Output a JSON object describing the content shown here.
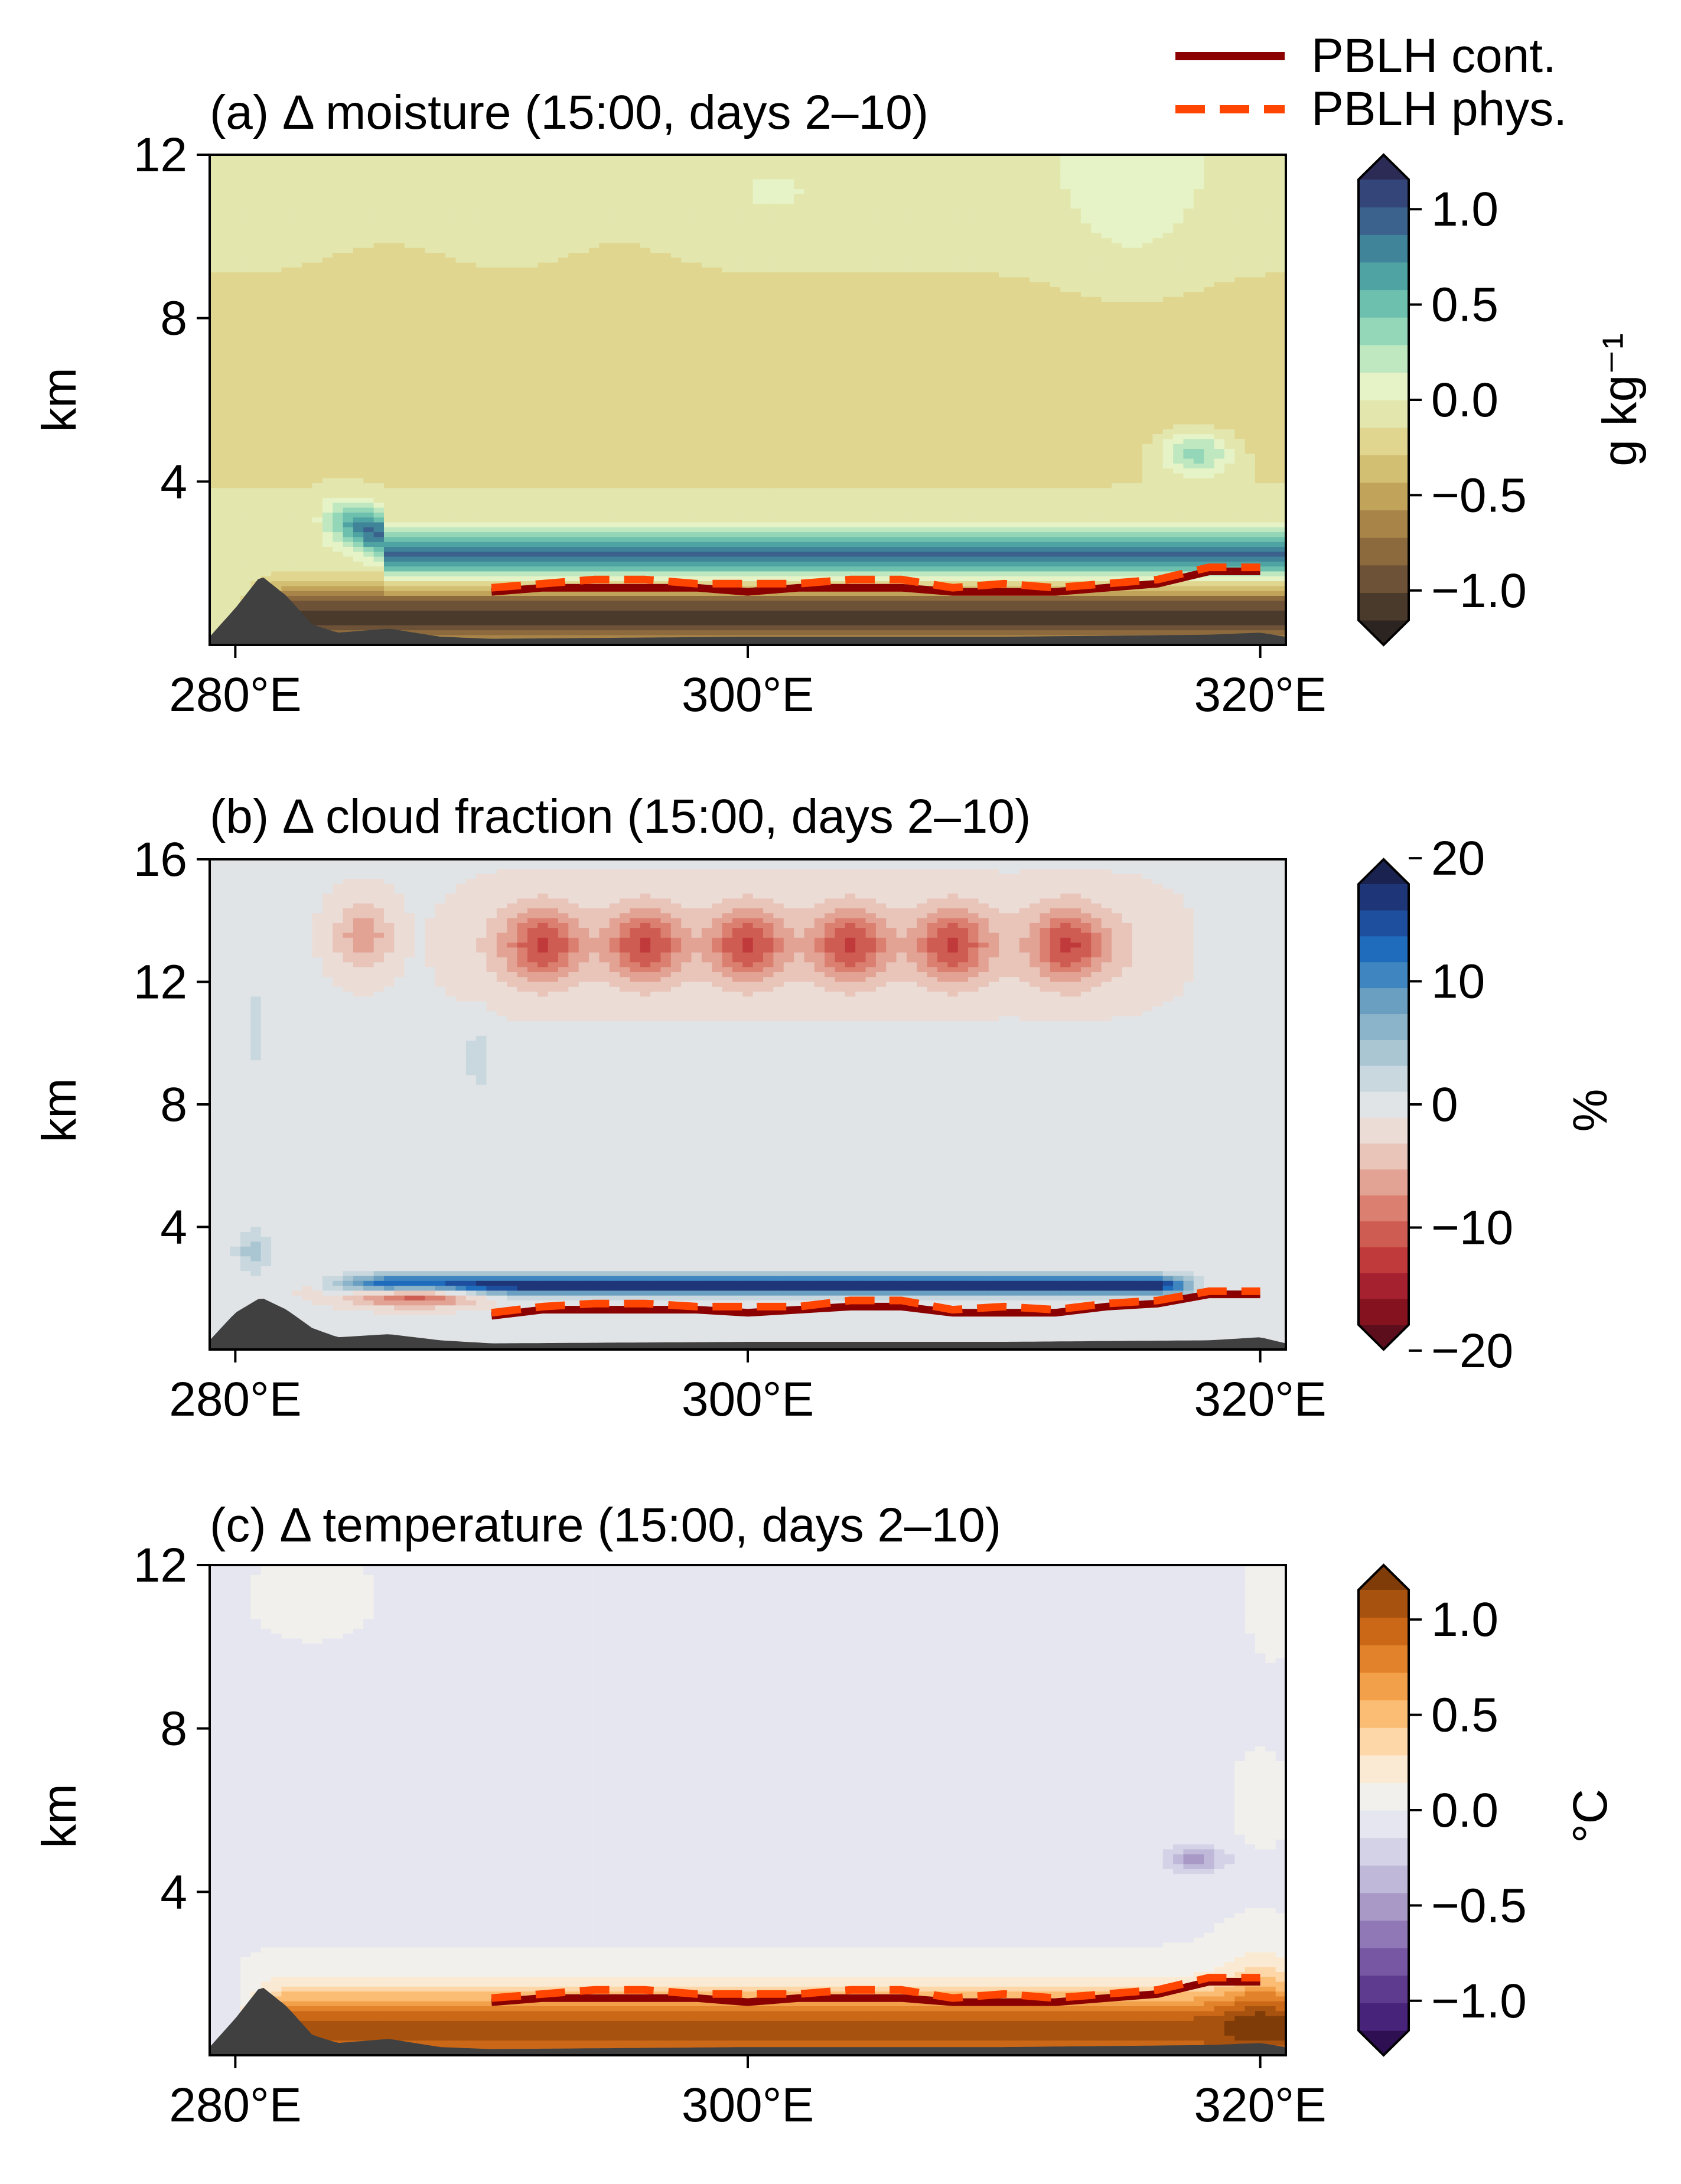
{
  "legend": {
    "placement": "top-right",
    "entries": [
      {
        "label": "PBLH cont.",
        "style": "solid",
        "color": "#8b0000"
      },
      {
        "label": "PBLH phys.",
        "style": "dashed",
        "color": "#ff4500"
      }
    ]
  },
  "chart_data": [
    {
      "type": "heatmap",
      "title": "(a) Δ moisture (15:00, days 2–10)",
      "xlabel": "",
      "ylabel": "km",
      "xlim": [
        279,
        321
      ],
      "ylim": [
        0,
        12
      ],
      "x_ticks": [
        280,
        300,
        320
      ],
      "x_tick_labels": [
        "280°E",
        "300°E",
        "320°E"
      ],
      "y_ticks": [
        4,
        8,
        12
      ],
      "y_tick_labels": [
        "4",
        "8",
        "12"
      ],
      "colorbar": {
        "label": "g kg⁻¹",
        "range": [
          -1.3,
          1.3
        ],
        "ticks": [
          -1.0,
          -0.5,
          0.0,
          0.5,
          1.0
        ],
        "tick_labels": [
          "−1.0",
          "−0.5",
          "0.0",
          "0.5",
          "1.0"
        ],
        "colors": [
          "#2b2420",
          "#4a3a2c",
          "#6e5237",
          "#8c6a3e",
          "#a88448",
          "#c2a35a",
          "#d3bf72",
          "#e0d68f",
          "#e3e7ae",
          "#e6f3c6",
          "#bfe8c0",
          "#94d6b8",
          "#6dc0ae",
          "#4fa3a3",
          "#3f8499",
          "#3a628c",
          "#34457a",
          "#2b2b55"
        ]
      },
      "pblh": {
        "x": [
          290,
          292,
          294,
          296,
          298,
          300,
          302,
          304,
          306,
          308,
          310,
          312,
          314,
          316,
          318,
          320
        ],
        "cont": [
          1.3,
          1.4,
          1.4,
          1.4,
          1.4,
          1.3,
          1.4,
          1.4,
          1.4,
          1.3,
          1.3,
          1.3,
          1.4,
          1.5,
          1.8,
          1.8
        ],
        "phys": [
          1.4,
          1.5,
          1.6,
          1.6,
          1.5,
          1.5,
          1.5,
          1.6,
          1.6,
          1.4,
          1.5,
          1.4,
          1.5,
          1.6,
          1.9,
          1.9
        ]
      },
      "terrain": {
        "x": [
          279,
          280,
          281,
          282,
          283,
          284,
          286,
          288,
          290,
          300,
          310,
          318,
          320,
          321
        ],
        "h": [
          0.2,
          0.9,
          1.7,
          1.2,
          0.5,
          0.3,
          0.4,
          0.2,
          0.15,
          0.2,
          0.2,
          0.25,
          0.3,
          0.2
        ]
      }
    },
    {
      "type": "heatmap",
      "title": "(b) Δ cloud fraction (15:00, days 2–10)",
      "xlabel": "",
      "ylabel": "km",
      "xlim": [
        279,
        321
      ],
      "ylim": [
        0,
        16
      ],
      "x_ticks": [
        280,
        300,
        320
      ],
      "x_tick_labels": [
        "280°E",
        "300°E",
        "320°E"
      ],
      "y_ticks": [
        4,
        8,
        12,
        16
      ],
      "y_tick_labels": [
        "4",
        "8",
        "12",
        "16"
      ],
      "colorbar": {
        "label": "%",
        "range": [
          -20,
          20
        ],
        "ticks": [
          -20,
          -10,
          0,
          10,
          20
        ],
        "tick_labels": [
          "−20",
          "−10",
          "0",
          "10",
          "20"
        ],
        "colors": [
          "#5c0e1c",
          "#85121f",
          "#a52130",
          "#c0393b",
          "#cf5c52",
          "#db7f70",
          "#e3a394",
          "#e8c4b9",
          "#ebdcd6",
          "#e1e4e7",
          "#c9d7de",
          "#aac6d3",
          "#8bb3c9",
          "#6a9fc2",
          "#3f86c0",
          "#1f6cbd",
          "#1e4f9e",
          "#1e3577",
          "#1a2250"
        ]
      },
      "pblh": {
        "x": [
          290,
          292,
          294,
          296,
          298,
          300,
          302,
          304,
          306,
          308,
          310,
          312,
          314,
          316,
          318,
          320
        ],
        "cont": [
          1.1,
          1.3,
          1.3,
          1.3,
          1.3,
          1.2,
          1.3,
          1.4,
          1.4,
          1.2,
          1.2,
          1.2,
          1.4,
          1.5,
          1.8,
          1.8
        ],
        "phys": [
          1.2,
          1.4,
          1.5,
          1.5,
          1.4,
          1.4,
          1.4,
          1.6,
          1.6,
          1.3,
          1.4,
          1.3,
          1.5,
          1.6,
          1.9,
          1.9
        ]
      },
      "terrain": {
        "x": [
          279,
          280,
          281,
          282,
          283,
          284,
          286,
          288,
          290,
          300,
          310,
          318,
          320,
          321
        ],
        "h": [
          0.3,
          1.2,
          1.7,
          1.3,
          0.7,
          0.4,
          0.5,
          0.3,
          0.2,
          0.25,
          0.25,
          0.3,
          0.4,
          0.2
        ]
      }
    },
    {
      "type": "heatmap",
      "title": "(c) Δ temperature (15:00, days 2–10)",
      "xlabel": "",
      "ylabel": "km",
      "xlim": [
        279,
        321
      ],
      "ylim": [
        0,
        12
      ],
      "x_ticks": [
        280,
        300,
        320
      ],
      "x_tick_labels": [
        "280°E",
        "300°E",
        "320°E"
      ],
      "y_ticks": [
        4,
        8,
        12
      ],
      "y_tick_labels": [
        "4",
        "8",
        "12"
      ],
      "colorbar": {
        "label": "°C",
        "range": [
          -1.3,
          1.3
        ],
        "ticks": [
          -1.0,
          -0.5,
          0.0,
          0.5,
          1.0
        ],
        "tick_labels": [
          "−1.0",
          "−0.5",
          "0.0",
          "0.5",
          "1.0"
        ],
        "colors": [
          "#2d0f52",
          "#47237a",
          "#5e3b8f",
          "#7757a3",
          "#8f78b5",
          "#a899c7",
          "#bfb8d8",
          "#d3d2e6",
          "#e5e6ef",
          "#f2f0ec",
          "#fbead3",
          "#fdd7a8",
          "#fbbd73",
          "#f3a04a",
          "#e2822a",
          "#ca6818",
          "#a8520f",
          "#7f3c08"
        ]
      },
      "pblh": {
        "x": [
          290,
          292,
          294,
          296,
          298,
          300,
          302,
          304,
          306,
          308,
          310,
          312,
          314,
          316,
          318,
          320
        ],
        "cont": [
          1.3,
          1.4,
          1.4,
          1.4,
          1.4,
          1.3,
          1.4,
          1.4,
          1.4,
          1.3,
          1.3,
          1.3,
          1.4,
          1.5,
          1.8,
          1.8
        ],
        "phys": [
          1.4,
          1.5,
          1.6,
          1.6,
          1.5,
          1.5,
          1.5,
          1.6,
          1.6,
          1.4,
          1.5,
          1.4,
          1.5,
          1.6,
          1.9,
          1.9
        ]
      },
      "terrain": {
        "x": [
          279,
          280,
          281,
          282,
          283,
          284,
          286,
          288,
          290,
          300,
          310,
          318,
          320,
          321
        ],
        "h": [
          0.2,
          0.9,
          1.7,
          1.2,
          0.5,
          0.3,
          0.4,
          0.2,
          0.15,
          0.2,
          0.2,
          0.25,
          0.3,
          0.2
        ]
      }
    }
  ]
}
